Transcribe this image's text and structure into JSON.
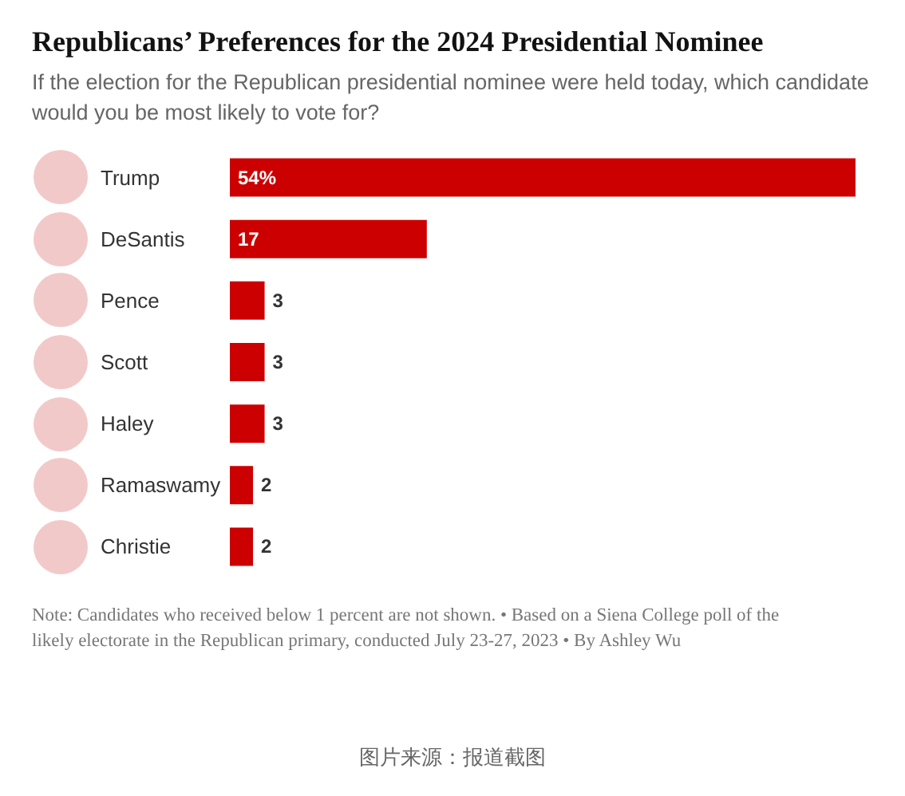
{
  "chart_data": {
    "type": "bar",
    "orientation": "horizontal",
    "title": "Republicans’ Preferences for the 2024 Presidential Nominee",
    "subtitle": "If the election for the Republican presidential nominee were held today, which candidate would you be most likely to vote for?",
    "categories": [
      "Trump",
      "DeSantis",
      "Pence",
      "Scott",
      "Haley",
      "Ramaswamy",
      "Christie"
    ],
    "values": [
      54,
      17,
      3,
      3,
      3,
      2,
      2
    ],
    "value_labels": [
      "54%",
      "17",
      "3",
      "3",
      "3",
      "2",
      "2"
    ],
    "color": "#cc0000",
    "tick_labels": "y",
    "annotations": [
      "Note: Candidates who received below 1 percent are not shown.  •  Based on a Siena College poll of the likely electorate in the Republican primary, conducted July 23-27, 2023  •  By Ashley Wu",
      "图片来源：报道截图"
    ]
  }
}
